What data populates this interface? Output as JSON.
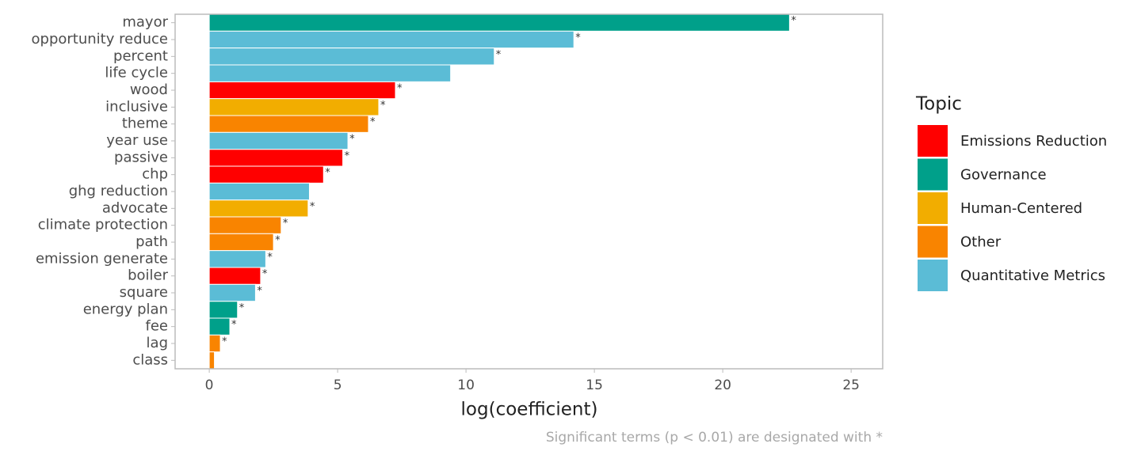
{
  "chart_data": {
    "type": "bar",
    "orientation": "horizontal",
    "categories": [
      "mayor",
      "opportunity reduce",
      "percent",
      "life cycle",
      "wood",
      "inclusive",
      "theme",
      "year use",
      "passive",
      "chp",
      "ghg reduction",
      "advocate",
      "climate protection",
      "path",
      "emission generate",
      "boiler",
      "square",
      "energy plan",
      "fee",
      "lag",
      "class"
    ],
    "series": [
      {
        "name": "Emissions Reduction",
        "color": "#ff0000",
        "values": [
          null,
          null,
          null,
          null,
          7.25,
          null,
          null,
          null,
          5.2,
          4.45,
          null,
          null,
          null,
          null,
          null,
          2.0,
          null,
          null,
          null,
          null,
          null
        ]
      },
      {
        "name": "Governance",
        "color": "#00a08a",
        "values": [
          22.6,
          null,
          null,
          null,
          null,
          null,
          null,
          null,
          null,
          null,
          null,
          null,
          null,
          null,
          null,
          null,
          null,
          1.1,
          0.8,
          null,
          null
        ]
      },
      {
        "name": "Human-Centered",
        "color": "#f2ad00",
        "values": [
          null,
          null,
          null,
          null,
          null,
          6.6,
          null,
          null,
          null,
          null,
          null,
          3.85,
          null,
          null,
          null,
          null,
          null,
          null,
          null,
          null,
          null
        ]
      },
      {
        "name": "Other",
        "color": "#f98400",
        "values": [
          null,
          null,
          null,
          null,
          null,
          null,
          6.2,
          null,
          null,
          null,
          null,
          null,
          2.8,
          2.5,
          null,
          null,
          null,
          null,
          null,
          0.43,
          0.2
        ]
      },
      {
        "name": "Quantitative Metrics",
        "color": "#5bbcd6",
        "values": [
          null,
          14.2,
          11.1,
          9.4,
          null,
          null,
          null,
          5.4,
          null,
          null,
          3.9,
          null,
          null,
          null,
          2.2,
          null,
          1.8,
          null,
          null,
          null,
          null
        ]
      }
    ],
    "significant": [
      true,
      true,
      true,
      false,
      true,
      true,
      true,
      true,
      true,
      true,
      false,
      true,
      true,
      true,
      true,
      true,
      true,
      true,
      true,
      true,
      false
    ],
    "significant_label": "*",
    "xlabel": "log(coefficient)",
    "legend_title": "Topic",
    "caption": "Significant terms (p < 0.01) are designated with *",
    "xlim": [
      -1.33,
      26.23
    ],
    "xticks": [
      0,
      5,
      10,
      15,
      20,
      25
    ],
    "grid": false,
    "legend": "right"
  }
}
